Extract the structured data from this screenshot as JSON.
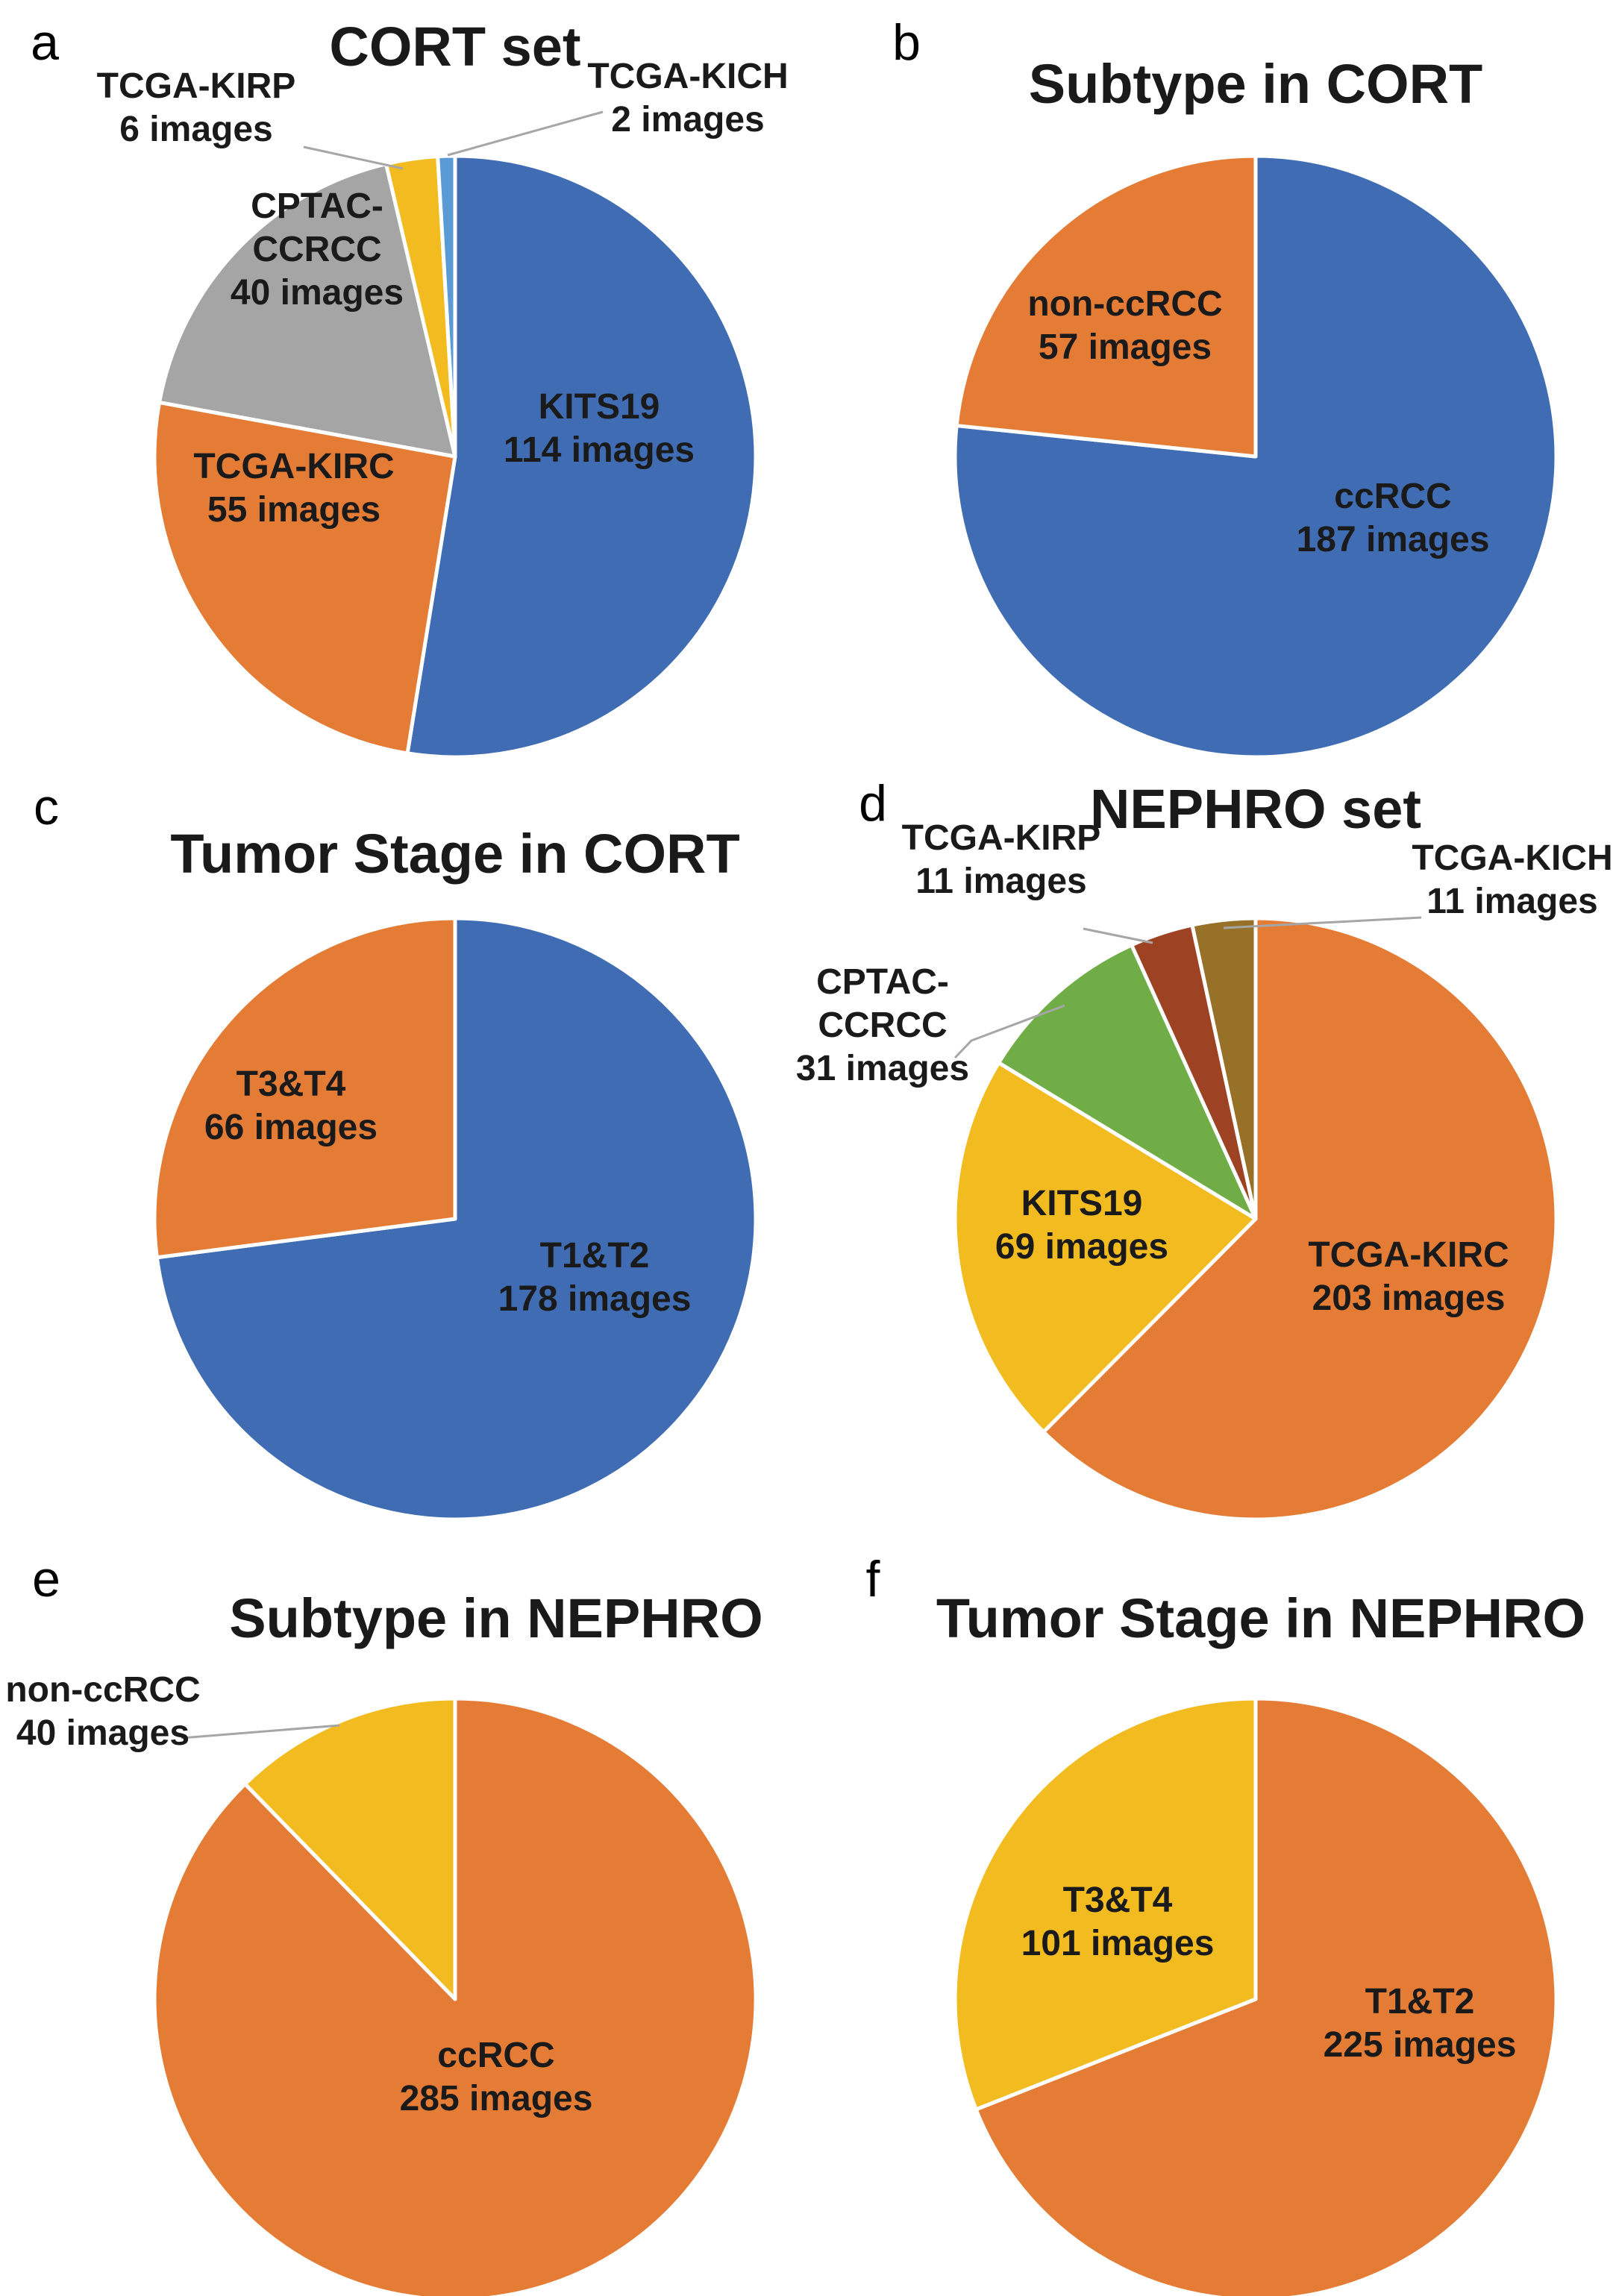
{
  "chart_data": [
    {
      "panel": "a",
      "type": "pie",
      "title": "CORT set",
      "slices": [
        {
          "label": "KITS19",
          "count_text": "114 images",
          "value": 114,
          "color": "#3f6cb3"
        },
        {
          "label": "TCGA-KIRC",
          "count_text": "55 images",
          "value": 55,
          "color": "#e47c35"
        },
        {
          "label": "CPTAC-\nCCRCC",
          "count_text": "40 images",
          "value": 40,
          "color": "#a5a5a5"
        },
        {
          "label": "TCGA-KIRP",
          "count_text": "6 images",
          "value": 6,
          "color": "#f2bb1f"
        },
        {
          "label": "TCGA-KICH",
          "count_text": "2 images",
          "value": 2,
          "color": "#5b9bd5"
        }
      ]
    },
    {
      "panel": "b",
      "type": "pie",
      "title": "Subtype in CORT",
      "slices": [
        {
          "label": "ccRCC",
          "count_text": "187 images",
          "value": 187,
          "color": "#3f6cb3"
        },
        {
          "label": "non-ccRCC",
          "count_text": "57 images",
          "value": 57,
          "color": "#e47c35"
        }
      ]
    },
    {
      "panel": "c",
      "type": "pie",
      "title": "Tumor Stage in CORT",
      "slices": [
        {
          "label": "T1&T2",
          "count_text": "178 images",
          "value": 178,
          "color": "#3f6cb3"
        },
        {
          "label": "T3&T4",
          "count_text": "66 images",
          "value": 66,
          "color": "#e47c35"
        }
      ]
    },
    {
      "panel": "d",
      "type": "pie",
      "title": "NEPHRO set",
      "slices": [
        {
          "label": "TCGA-KIRC",
          "count_text": "203 images",
          "value": 203,
          "color": "#e47c35"
        },
        {
          "label": "KITS19",
          "count_text": "69 images",
          "value": 69,
          "color": "#f2bb1f"
        },
        {
          "label": "CPTAC-\nCCRCC",
          "count_text": "31 images",
          "value": 31,
          "color": "#70ad47"
        },
        {
          "label": "TCGA-KIRP",
          "count_text": "11 images",
          "value": 11,
          "color": "#9e4224"
        },
        {
          "label": "TCGA-KICH",
          "count_text": "11 images",
          "value": 11,
          "color": "#977128"
        }
      ]
    },
    {
      "panel": "e",
      "type": "pie",
      "title": "Subtype in NEPHRO",
      "slices": [
        {
          "label": "ccRCC",
          "count_text": "285 images",
          "value": 285,
          "color": "#e47c35"
        },
        {
          "label": "non-ccRCC",
          "count_text": "40 images",
          "value": 40,
          "color": "#f2bb1f"
        }
      ]
    },
    {
      "panel": "f",
      "type": "pie",
      "title": "Tumor Stage in NEPHRO",
      "slices": [
        {
          "label": "T1&T2",
          "count_text": "225 images",
          "value": 225,
          "color": "#e47c35"
        },
        {
          "label": "T3&T4",
          "count_text": "101 images",
          "value": 101,
          "color": "#f2bb1f"
        }
      ]
    }
  ]
}
